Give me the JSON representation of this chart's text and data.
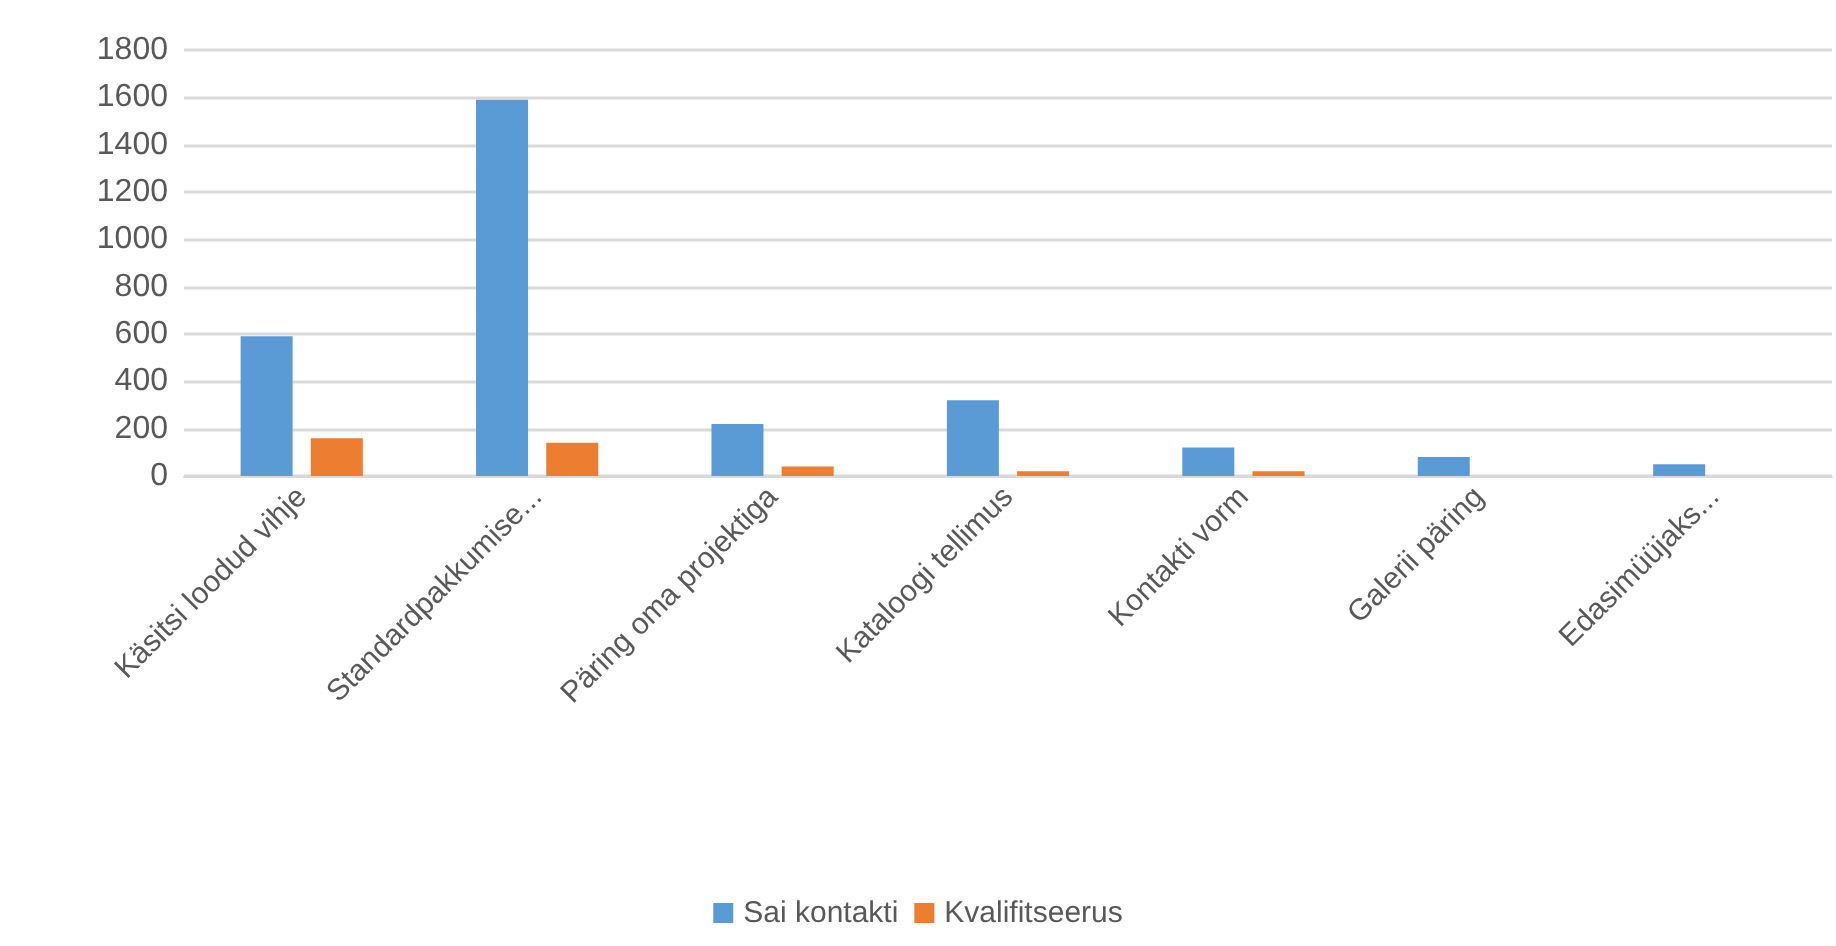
{
  "chart_data": {
    "type": "bar",
    "categories": [
      "Käsitsi loodud vihje",
      "Standardpakkumise...",
      "Päring oma projektiga",
      "Kataloogi tellimus",
      "Kontakti vorm",
      "Galerii päring",
      "Edasimüüjaks..."
    ],
    "series": [
      {
        "name": "Sai kontakti",
        "color": "#5b9bd5",
        "values": [
          590,
          1590,
          220,
          320,
          120,
          80,
          50
        ]
      },
      {
        "name": "Kvalifitseerus",
        "color": "#ed7d31",
        "values": [
          160,
          140,
          40,
          20,
          20,
          0,
          0
        ]
      }
    ],
    "ylim": [
      0,
      1800
    ],
    "yticks": [
      0,
      200,
      400,
      600,
      800,
      1000,
      1200,
      1400,
      1600,
      1800
    ],
    "grid": "y",
    "legend": "bottom"
  }
}
